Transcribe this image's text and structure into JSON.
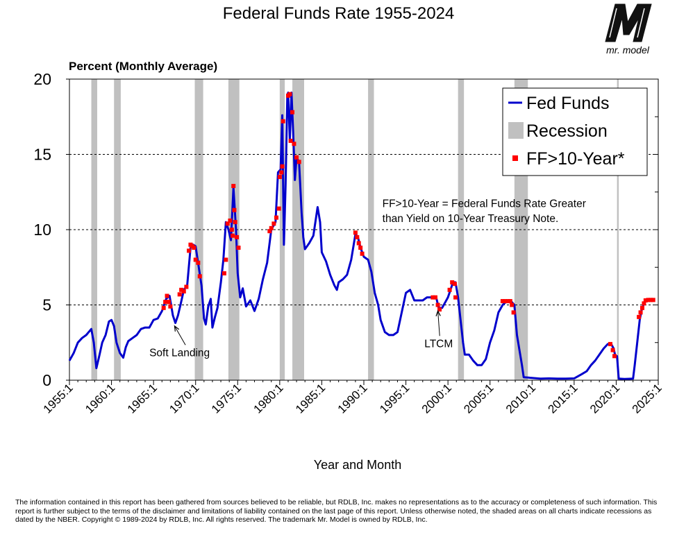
{
  "page": {
    "title": "Federal Funds Rate 1955-2024",
    "unit_label": "Percent (Monthly Average)",
    "logo_text": "mr. model",
    "disclaimer": "The information contained in this report has been gathered from sources believed to be reliable, but RDLB, Inc. makes no representations as to the accuracy or completeness of such information.  This report is further subject to the terms of the disclaimer and limitations of liability contained on the last page of this report.  Unless otherwise noted, the shaded areas on all charts indicate recessions as dated by the NBER. Copyright © 1989-2024 by RDLB, Inc.  All rights reserved.  The trademark Mr. Model is owned by RDLB, Inc."
  },
  "chart_data": {
    "type": "line",
    "title": "Federal Funds Rate 1955-2024",
    "ylabel": "Percent (Monthly Average)",
    "xlabel": "Year and Month",
    "xlim": [
      1955.0,
      2025.0
    ],
    "ylim": [
      0,
      20
    ],
    "y_ticks": [
      0,
      5,
      10,
      15,
      20
    ],
    "x_ticks": [
      "1955:1",
      "1960:1",
      "1965:1",
      "1970:1",
      "1975:1",
      "1980:1",
      "1985:1",
      "1990:1",
      "1995:1",
      "2000:1",
      "2005:1",
      "2010:1",
      "2015:1",
      "2020:1",
      "2025:1"
    ],
    "x_tick_values": [
      1955,
      1960,
      1965,
      1970,
      1975,
      1980,
      1985,
      1990,
      1995,
      2000,
      2005,
      2010,
      2015,
      2020,
      2025
    ],
    "grid": "horizontal dashed",
    "legend_position": "top-right",
    "legend": [
      {
        "label": "Fed Funds",
        "kind": "line",
        "color": "#0000cc"
      },
      {
        "label": "Recession",
        "kind": "band",
        "color": "#c0c0c0"
      },
      {
        "label": "FF>10-Year*",
        "kind": "marker",
        "color": "#ff0000"
      }
    ],
    "series": [
      {
        "name": "Fed Funds",
        "color": "#0000cc",
        "x": [
          1955.0,
          1955.5,
          1956.0,
          1956.5,
          1957.0,
          1957.6,
          1957.9,
          1958.2,
          1958.5,
          1958.9,
          1959.3,
          1959.7,
          1960.0,
          1960.3,
          1960.6,
          1961.0,
          1961.4,
          1961.7,
          1962.0,
          1962.5,
          1963.0,
          1963.5,
          1964.0,
          1964.5,
          1965.0,
          1965.5,
          1966.0,
          1966.5,
          1966.9,
          1967.3,
          1967.6,
          1967.9,
          1968.2,
          1968.6,
          1969.0,
          1969.4,
          1969.7,
          1970.0,
          1970.3,
          1970.7,
          1971.0,
          1971.2,
          1971.5,
          1971.8,
          1972.0,
          1972.3,
          1972.6,
          1973.0,
          1973.3,
          1973.6,
          1973.9,
          1974.2,
          1974.5,
          1974.8,
          1975.0,
          1975.3,
          1975.6,
          1976.0,
          1976.5,
          1977.0,
          1977.5,
          1978.0,
          1978.5,
          1979.0,
          1979.5,
          1979.8,
          1980.1,
          1980.3,
          1980.5,
          1980.7,
          1980.9,
          1981.0,
          1981.2,
          1981.4,
          1981.6,
          1981.8,
          1982.0,
          1982.3,
          1982.6,
          1982.8,
          1983.0,
          1983.5,
          1984.0,
          1984.5,
          1984.8,
          1985.0,
          1985.5,
          1986.0,
          1986.5,
          1986.8,
          1987.0,
          1987.5,
          1988.0,
          1988.5,
          1989.0,
          1989.3,
          1989.6,
          1990.0,
          1990.5,
          1990.9,
          1991.3,
          1991.7,
          1992.0,
          1992.5,
          1993.0,
          1993.5,
          1994.0,
          1994.5,
          1995.0,
          1995.5,
          1996.0,
          1996.5,
          1997.0,
          1997.5,
          1998.0,
          1998.6,
          1998.9,
          1999.3,
          1999.7,
          2000.0,
          2000.3,
          2000.6,
          2000.9,
          2001.2,
          2001.5,
          2001.8,
          2002.0,
          2002.5,
          2003.0,
          2003.5,
          2004.0,
          2004.5,
          2005.0,
          2005.5,
          2006.0,
          2006.5,
          2007.0,
          2007.5,
          2007.9,
          2008.2,
          2008.5,
          2008.8,
          2009.0,
          2010.0,
          2011.0,
          2012.0,
          2013.0,
          2014.0,
          2015.0,
          2015.9,
          2016.5,
          2017.0,
          2017.5,
          2018.0,
          2018.5,
          2019.0,
          2019.4,
          2019.7,
          2019.9,
          2020.1,
          2020.3,
          2021.0,
          2022.0,
          2022.2,
          2022.5,
          2022.8,
          2023.0,
          2023.3,
          2023.6,
          2024.0,
          2024.4
        ],
        "y": [
          1.3,
          1.8,
          2.5,
          2.8,
          3.0,
          3.4,
          2.5,
          0.8,
          1.5,
          2.5,
          3.0,
          3.9,
          4.0,
          3.6,
          2.5,
          1.8,
          1.5,
          2.2,
          2.6,
          2.8,
          3.0,
          3.4,
          3.5,
          3.5,
          4.0,
          4.1,
          4.6,
          5.4,
          5.6,
          4.3,
          3.8,
          4.3,
          5.0,
          6.0,
          6.3,
          8.8,
          9.0,
          8.9,
          7.8,
          6.3,
          4.1,
          3.7,
          4.9,
          5.4,
          3.5,
          4.2,
          4.8,
          6.5,
          8.0,
          10.5,
          10.0,
          9.3,
          12.8,
          10.0,
          7.1,
          5.5,
          6.1,
          4.9,
          5.3,
          4.6,
          5.4,
          6.7,
          7.8,
          10.0,
          10.5,
          13.8,
          14.0,
          17.6,
          9.0,
          13.0,
          18.9,
          19.1,
          15.9,
          19.1,
          16.5,
          13.3,
          14.8,
          14.5,
          11.1,
          9.5,
          8.7,
          9.1,
          9.6,
          11.5,
          10.5,
          8.5,
          7.9,
          7.0,
          6.3,
          6.0,
          6.5,
          6.7,
          7.0,
          8.0,
          9.7,
          9.5,
          8.8,
          8.2,
          8.0,
          7.2,
          5.8,
          5.0,
          4.0,
          3.2,
          3.0,
          3.0,
          3.2,
          4.5,
          5.8,
          6.0,
          5.3,
          5.3,
          5.3,
          5.5,
          5.5,
          5.5,
          4.8,
          4.8,
          5.2,
          5.5,
          6.0,
          6.5,
          6.5,
          5.5,
          4.0,
          2.5,
          1.7,
          1.7,
          1.3,
          1.0,
          1.0,
          1.4,
          2.5,
          3.3,
          4.5,
          5.0,
          5.25,
          5.25,
          5.0,
          3.0,
          2.0,
          1.0,
          0.2,
          0.15,
          0.1,
          0.12,
          0.1,
          0.1,
          0.12,
          0.4,
          0.6,
          1.0,
          1.3,
          1.7,
          2.1,
          2.4,
          2.4,
          2.1,
          1.6,
          1.6,
          0.1,
          0.08,
          0.1,
          1.0,
          2.5,
          4.0,
          4.6,
          5.1,
          5.3,
          5.33,
          5.33
        ]
      },
      {
        "name": "FF>10-Year*",
        "color": "#ff0000",
        "x": [
          1966.2,
          1966.4,
          1966.6,
          1966.8,
          1967.0,
          1968.1,
          1968.3,
          1968.6,
          1968.9,
          1969.2,
          1969.4,
          1969.6,
          1969.8,
          1970.0,
          1970.3,
          1970.5,
          1973.4,
          1973.6,
          1973.8,
          1974.1,
          1974.3,
          1974.4,
          1974.5,
          1974.6,
          1974.7,
          1974.9,
          1975.1,
          1978.8,
          1979.0,
          1979.3,
          1979.6,
          1979.9,
          1980.0,
          1980.2,
          1980.3,
          1980.4,
          1981.0,
          1981.2,
          1981.3,
          1981.5,
          1981.7,
          1982.0,
          1982.3,
          1989.0,
          1989.2,
          1989.4,
          1989.6,
          1989.8,
          1998.2,
          1998.5,
          1998.8,
          1999.0,
          2000.2,
          2000.5,
          2000.8,
          2000.9,
          2006.5,
          2006.8,
          2007.1,
          2007.4,
          2007.6,
          2007.8,
          2019.3,
          2019.6,
          2019.8,
          2022.7,
          2022.9,
          2023.1,
          2023.3,
          2023.5,
          2023.8,
          2024.1,
          2024.4
        ],
        "y": [
          4.8,
          5.2,
          5.6,
          5.2,
          4.9,
          5.7,
          6.0,
          5.9,
          6.2,
          8.6,
          9.0,
          8.9,
          8.8,
          8.0,
          7.8,
          6.9,
          7.1,
          8.0,
          10.4,
          10.6,
          10.0,
          9.6,
          12.9,
          11.3,
          10.5,
          9.5,
          8.8,
          9.9,
          10.1,
          10.4,
          10.8,
          11.4,
          13.5,
          13.8,
          14.2,
          17.2,
          18.9,
          19.0,
          15.9,
          17.8,
          15.7,
          14.8,
          14.5,
          9.8,
          9.5,
          9.1,
          8.8,
          8.4,
          5.5,
          5.5,
          5.0,
          4.7,
          6.0,
          6.5,
          6.4,
          5.5,
          5.25,
          5.25,
          5.25,
          5.25,
          5.0,
          4.5,
          2.4,
          2.0,
          1.6,
          4.2,
          4.5,
          4.8,
          5.1,
          5.3,
          5.33,
          5.33,
          5.33
        ]
      }
    ],
    "recessions": [
      [
        1957.6,
        1958.3
      ],
      [
        1960.3,
        1961.1
      ],
      [
        1969.9,
        1970.9
      ],
      [
        1973.9,
        1975.2
      ],
      [
        1980.0,
        1980.6
      ],
      [
        1981.5,
        1982.9
      ],
      [
        1990.5,
        1991.2
      ],
      [
        2001.2,
        2001.9
      ],
      [
        2007.9,
        2009.5
      ],
      [
        2020.1,
        2020.3
      ]
    ],
    "annotations": [
      {
        "text": "FF>10-Year = Federal Funds Rate Greater",
        "x": 1992.2,
        "y": 11.5
      },
      {
        "text": "than Yield on 10-Year Treasury Note.",
        "x": 1992.2,
        "y": 10.5
      },
      {
        "text": "Soft Landing",
        "x": 1964.5,
        "y": 1.6,
        "arrow_to": [
          1967.5,
          3.6
        ]
      },
      {
        "text": "LTCM",
        "x": 1997.2,
        "y": 2.2,
        "arrow_to": [
          1998.8,
          4.6
        ]
      }
    ]
  }
}
